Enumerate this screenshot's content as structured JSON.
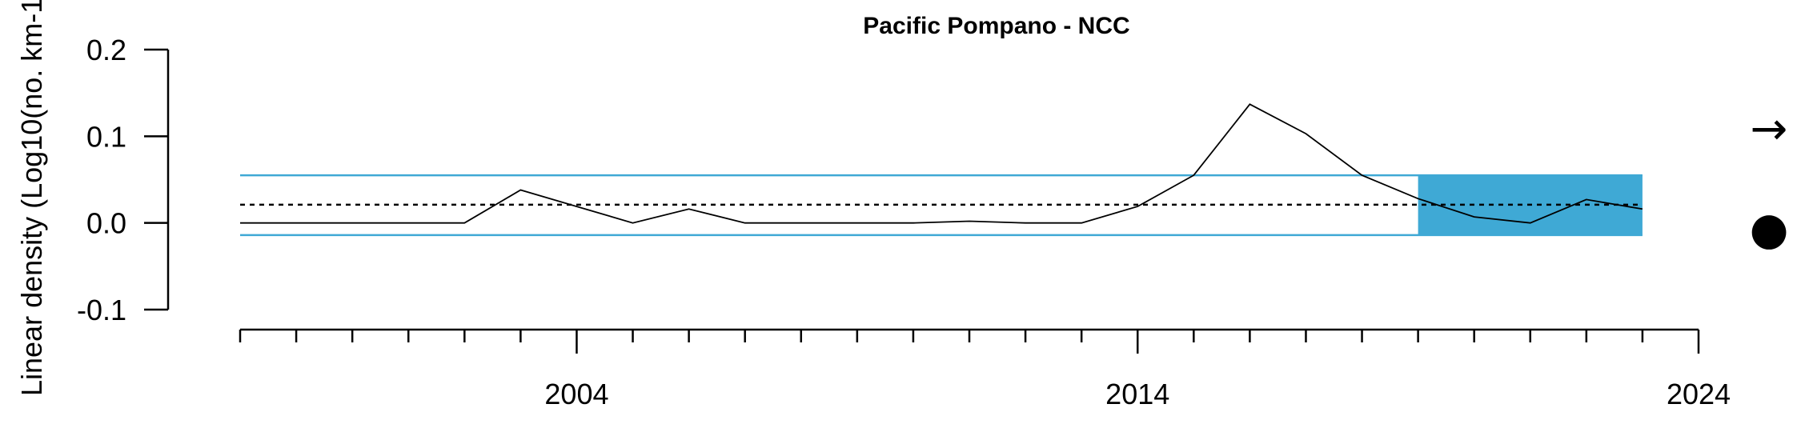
{
  "chart_data": {
    "type": "line",
    "title": "Pacific Pompano - NCC",
    "ylabel": "Linear density (Log10(no. km-1 +1))",
    "xlabel": "",
    "xlim": [
      1998,
      2024
    ],
    "ylim": [
      -0.1,
      0.2
    ],
    "yticks": [
      "-0.1",
      "0.0",
      "0.1",
      "0.2"
    ],
    "xticks_major": [
      "2004",
      "2014",
      "2024"
    ],
    "grid": false,
    "series": [
      {
        "x": [
          1998,
          1999,
          2000,
          2001,
          2002,
          2003,
          2004,
          2005,
          2006,
          2007,
          2008,
          2009,
          2010,
          2011,
          2012,
          2013,
          2014,
          2015,
          2016,
          2017,
          2018,
          2019,
          2020,
          2021,
          2022,
          2023
        ],
        "values": [
          0.0,
          0.0,
          0.0,
          0.0,
          0.0,
          0.038,
          0.019,
          0.0,
          0.016,
          0.0,
          0.0,
          0.0,
          0.0,
          0.002,
          0.0,
          0.0,
          0.019,
          0.055,
          0.137,
          0.103,
          0.055,
          0.028,
          0.007,
          0.0,
          0.027,
          0.016
        ]
      }
    ],
    "mean": 0.021,
    "upper_band": 0.055,
    "lower_band": -0.014,
    "highlight_range": [
      2019,
      2023
    ],
    "colors": {
      "band": "#3FA9D5",
      "line": "#000000",
      "mean": "#000000"
    },
    "indicators": {
      "trend": "→",
      "mean_status": "●"
    }
  }
}
